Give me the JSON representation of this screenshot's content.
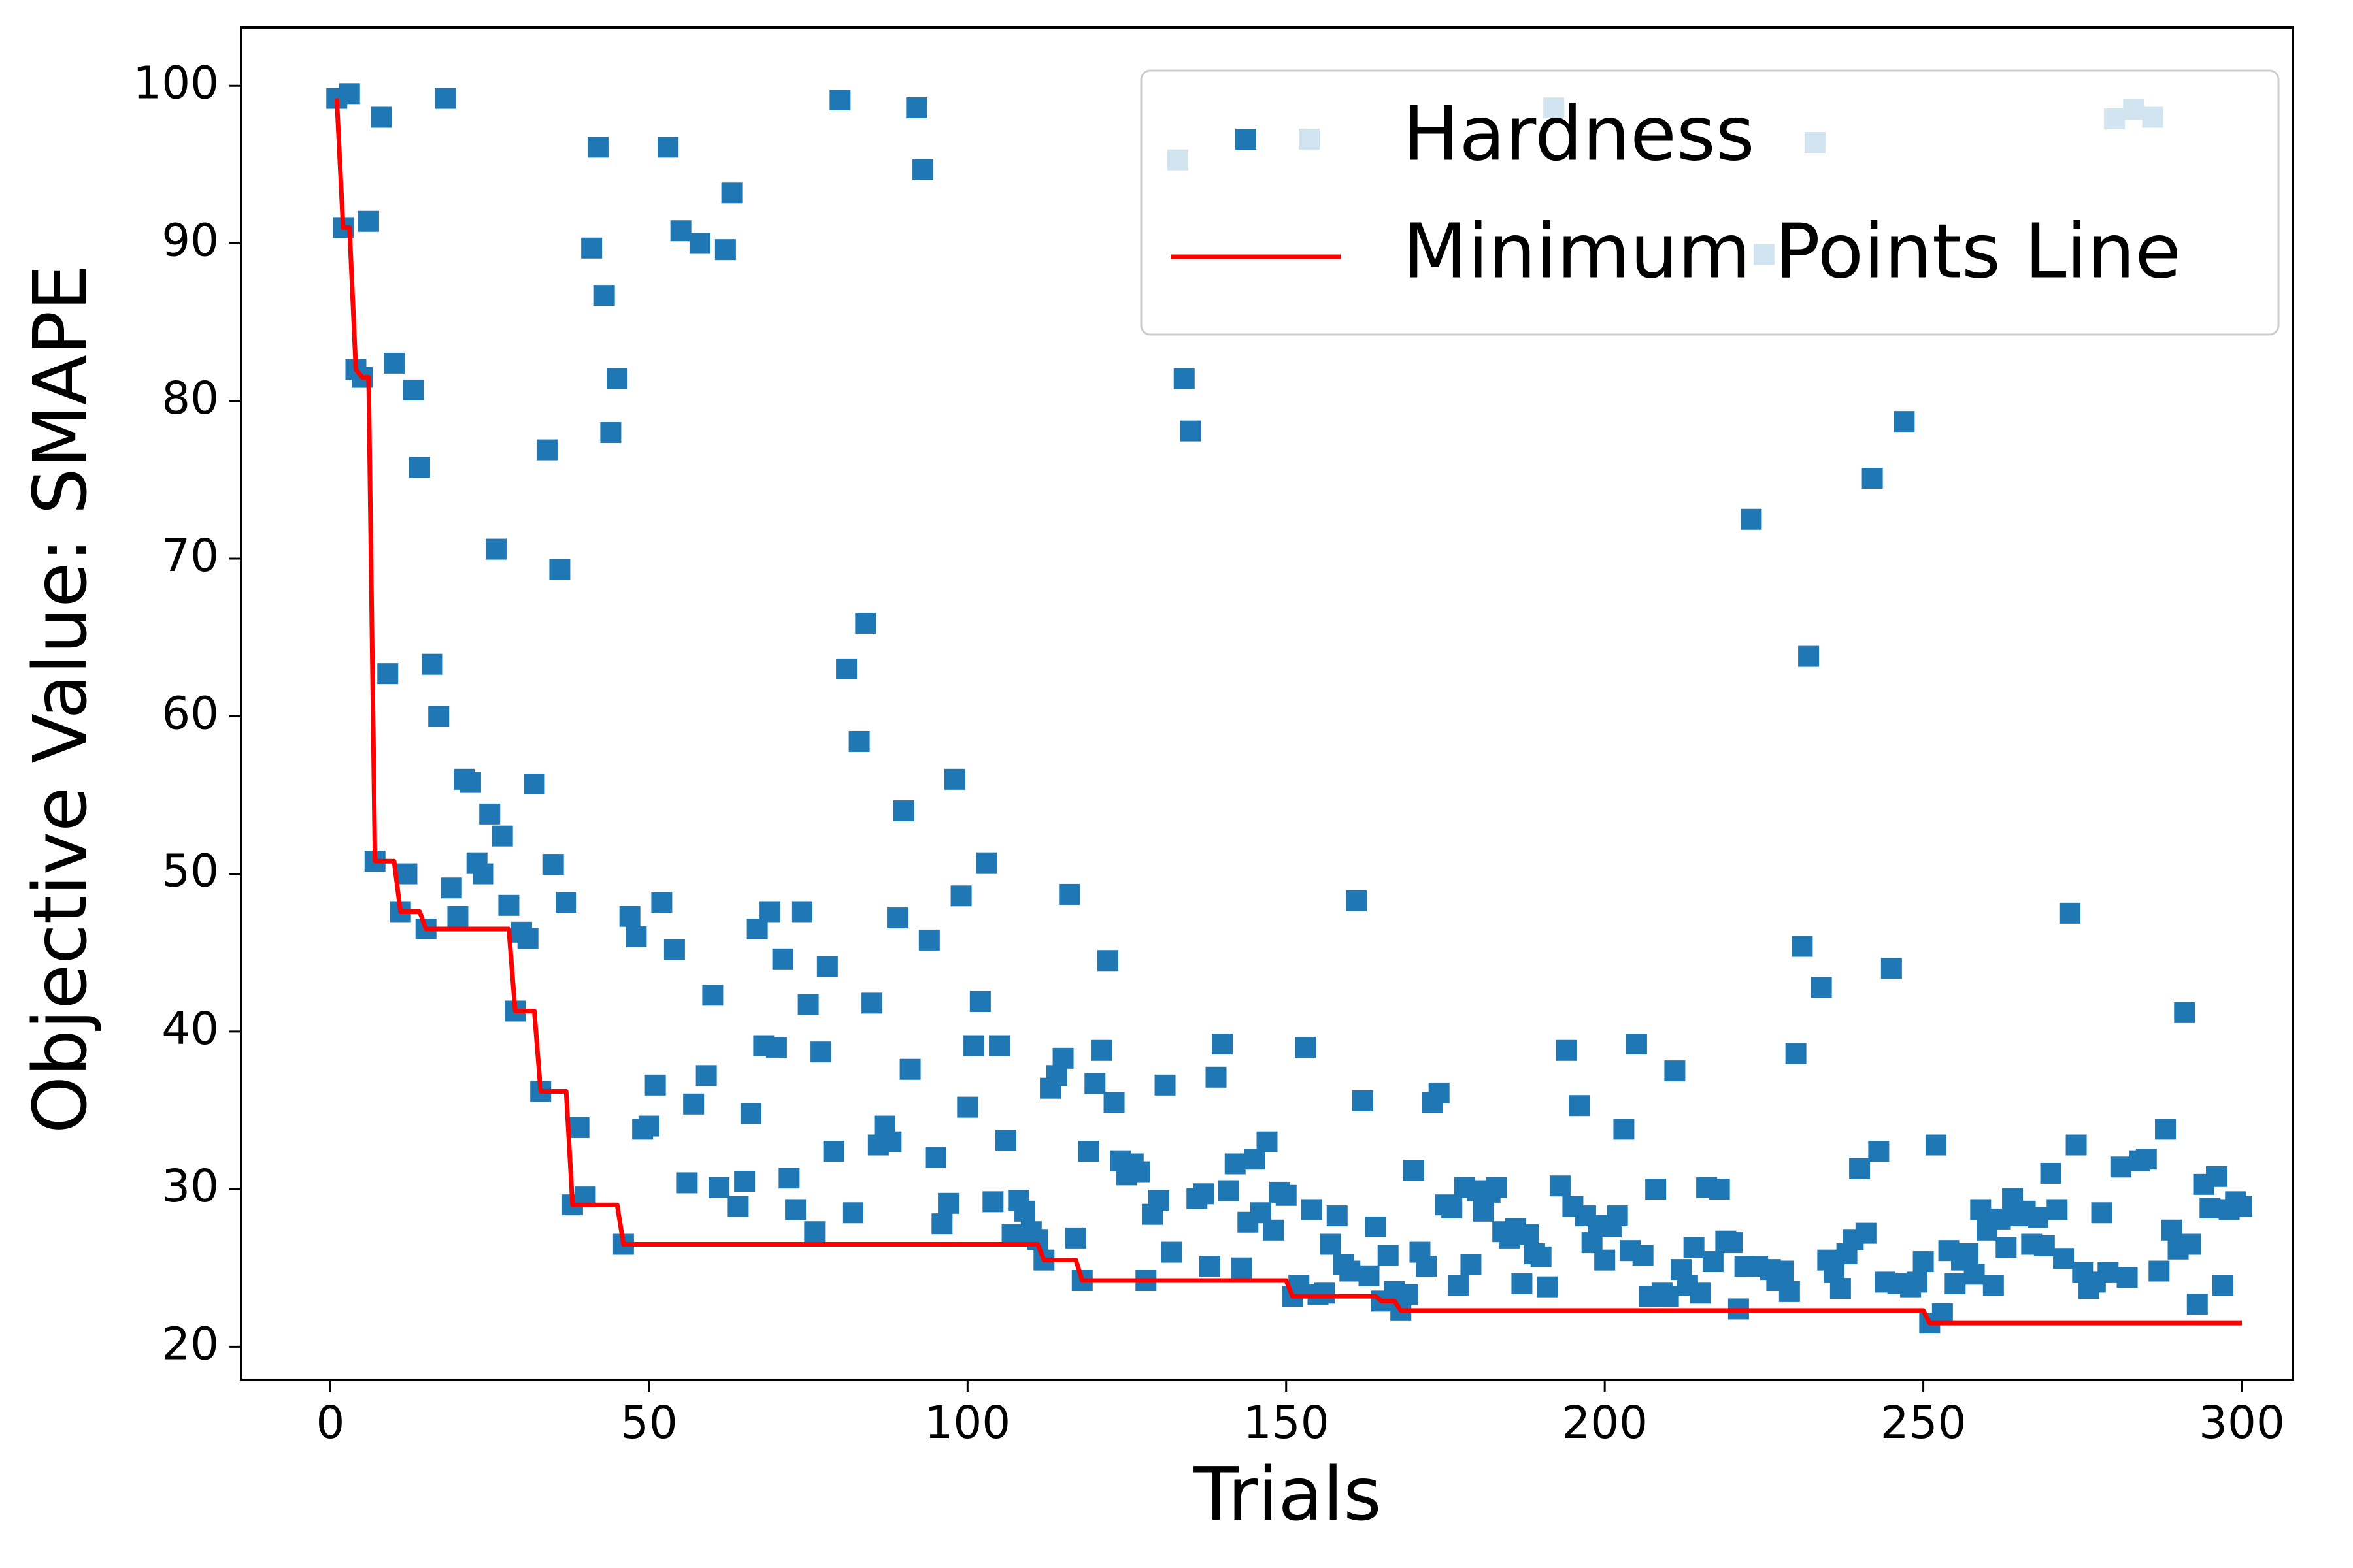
{
  "chart_data": {
    "type": "scatter",
    "xlabel": "Trials",
    "ylabel": "Objective Value: SMAPE",
    "xlim": [
      -14,
      308
    ],
    "ylim": [
      17.9,
      103.7
    ],
    "xticks": [
      0,
      50,
      100,
      150,
      200,
      250,
      300
    ],
    "yticks": [
      20,
      30,
      40,
      50,
      60,
      70,
      80,
      90,
      100
    ],
    "legend": "upper right",
    "series": [
      {
        "name": "Hardness",
        "type": "scatter",
        "color": "#1f77b4",
        "x": [
          1,
          2,
          3,
          4,
          5,
          6,
          7,
          8,
          9,
          10,
          11,
          12,
          13,
          14,
          15,
          16,
          17,
          18,
          19,
          20,
          21,
          22,
          23,
          24,
          25,
          26,
          27,
          28,
          29,
          30,
          31,
          32,
          33,
          34,
          35,
          36,
          37,
          38,
          39,
          40,
          41,
          42,
          43,
          44,
          45,
          46,
          47,
          48,
          49,
          50,
          51,
          52,
          53,
          54,
          55,
          56,
          57,
          58,
          59,
          60,
          61,
          62,
          63,
          64,
          65,
          66,
          67,
          68,
          69,
          70,
          71,
          72,
          73,
          74,
          75,
          76,
          77,
          78,
          79,
          80,
          81,
          82,
          83,
          84,
          85,
          86,
          87,
          88,
          89,
          90,
          91,
          92,
          93,
          94,
          95,
          96,
          97,
          98,
          99,
          100,
          101,
          102,
          103,
          104,
          105,
          106,
          107,
          108,
          109,
          110,
          111,
          112,
          113,
          114,
          115,
          116,
          117,
          118,
          119,
          120,
          121,
          122,
          123,
          124,
          125,
          126,
          127,
          128,
          129,
          130,
          131,
          132,
          133,
          134,
          135,
          136,
          137,
          138,
          139,
          140,
          141,
          142,
          143,
          144,
          145,
          146,
          147,
          148,
          149,
          150,
          151,
          152,
          153,
          154,
          155,
          156,
          157,
          158,
          159,
          160,
          161,
          162,
          163,
          164,
          165,
          166,
          167,
          168,
          169,
          170,
          171,
          172,
          173,
          174,
          175,
          176,
          177,
          178,
          179,
          180,
          181,
          182,
          183,
          184,
          185,
          186,
          187,
          188,
          189,
          190,
          191,
          192,
          193,
          194,
          195,
          196,
          197,
          198,
          199,
          200,
          201,
          202,
          203,
          204,
          205,
          206,
          207,
          208,
          209,
          210,
          211,
          212,
          213,
          214,
          215,
          216,
          217,
          218,
          219,
          220,
          221,
          222,
          223,
          224,
          225,
          226,
          227,
          228,
          229,
          230,
          231,
          232,
          233,
          234,
          235,
          236,
          237,
          238,
          239,
          240,
          241,
          242,
          243,
          244,
          245,
          246,
          247,
          248,
          249,
          250,
          251,
          252,
          253,
          254,
          255,
          256,
          257,
          258,
          259,
          260,
          261,
          262,
          263,
          264,
          265,
          266,
          267,
          268,
          269,
          270,
          271,
          272,
          273,
          274,
          275,
          276,
          277,
          278,
          279,
          280,
          281,
          282,
          283,
          284,
          285,
          286,
          287,
          288,
          289,
          290,
          291,
          292,
          293,
          294,
          295,
          296,
          297,
          298,
          299,
          300
        ],
        "values": [
          99.2,
          91,
          99.5,
          82,
          81.5,
          91.4,
          50.8,
          98,
          62.7,
          82.4,
          47.6,
          50,
          80.7,
          75.8,
          46.5,
          63.3,
          60,
          99.2,
          49.1,
          47.3,
          56,
          55.8,
          50.7,
          50,
          53.8,
          70.6,
          52.4,
          48,
          41.3,
          46.3,
          45.9,
          55.7,
          36.2,
          76.9,
          50.6,
          69.3,
          48.2,
          29,
          33.9,
          29.5,
          89.7,
          96.1,
          86.7,
          78,
          81.4,
          26.5,
          47.3,
          46,
          33.8,
          34,
          36.6,
          48.2,
          96.1,
          45.2,
          90.8,
          30.4,
          35.4,
          90,
          37.2,
          42.3,
          30.1,
          89.6,
          93.2,
          28.9,
          30.5,
          34.8,
          46.5,
          39.1,
          47.6,
          39,
          44.6,
          30.7,
          28.7,
          47.6,
          41.7,
          27.3,
          38.7,
          44.1,
          32.4,
          99.1,
          63,
          28.5,
          58.4,
          65.9,
          41.8,
          32.8,
          34,
          33,
          47.2,
          54,
          37.6,
          98.6,
          94.7,
          45.8,
          32,
          27.8,
          29.1,
          56,
          48.6,
          35.2,
          39.1,
          41.9,
          50.7,
          29.2,
          39.1,
          33.1,
          27.1,
          29.3,
          28.6,
          27.3,
          26.8,
          25.5,
          36.4,
          37.2,
          38.3,
          48.7,
          26.9,
          24.2,
          32.4,
          36.7,
          38.8,
          44.5,
          35.5,
          31.8,
          30.9,
          31.6,
          31.1,
          24.2,
          28.4,
          29.3,
          36.6,
          26,
          95.3,
          81.4,
          78.1,
          29.4,
          29.7,
          25.1,
          37.1,
          39.2,
          29.9,
          31.6,
          25,
          27.9,
          31.9,
          28.5,
          33,
          27.4,
          29.8,
          29.6,
          23.2,
          23.9,
          39,
          28.7,
          23.3,
          23.4,
          26.5,
          28.3,
          25.2,
          24.8,
          48.3,
          35.6,
          24.5,
          27.6,
          22.9,
          25.8,
          23.5,
          22.3,
          23.3,
          31.2,
          26,
          25.1,
          35.5,
          36.1,
          29,
          28.8,
          23.9,
          30.1,
          25.2,
          29.9,
          28.6,
          29.8,
          30.1,
          27.3,
          26.9,
          27.5,
          24,
          27.1,
          25.9,
          25.7,
          23.8,
          98.6,
          30.2,
          38.8,
          28.9,
          35.3,
          28.3,
          26.6,
          27.7,
          25.5,
          27.6,
          28.3,
          33.8,
          26.1,
          39.2,
          25.8,
          23.2,
          30,
          23.4,
          23.2,
          37.5,
          24.9,
          23.9,
          26.3,
          23.4,
          30.1,
          25.4,
          30,
          26.7,
          26.6,
          22.4,
          25.1,
          72.5,
          25.1,
          89.3,
          24.9,
          24.2,
          24.8,
          23.5,
          38.6,
          45.4,
          63.8,
          96.4,
          42.8,
          25.5,
          24.7,
          23.7,
          25.9,
          26.8,
          31.3,
          27.2,
          75.1,
          32.4,
          24.1,
          44,
          24,
          78.7,
          23.8,
          24.1,
          25.4,
          21.5,
          32.8,
          22.1,
          26.1,
          24,
          25.5,
          25.9,
          24.6,
          28.7,
          27.4,
          23.9,
          28.1,
          26.3,
          29.4,
          28.3,
          28.6,
          26.5,
          28.2,
          26.4,
          31,
          28.7,
          25.6,
          47.5,
          32.8,
          24.7,
          23.7,
          24.1,
          28.5,
          24.7,
          97.9,
          31.4,
          24.4,
          98.5,
          31.8,
          31.9,
          98,
          24.8,
          33.8,
          27.4,
          26.2,
          41.2,
          26.5,
          22.7,
          30.3,
          28.8,
          30.8,
          23.9,
          28.7,
          29.2,
          28.9
        ]
      },
      {
        "name": "Minimum Points Line",
        "type": "line",
        "color": "#ff0000",
        "x": [
          1,
          2,
          3,
          4,
          5,
          6,
          7,
          10,
          11,
          14,
          15,
          28,
          29,
          32,
          33,
          37,
          38,
          45,
          46,
          111,
          112,
          117,
          118,
          150,
          151,
          164,
          165,
          167,
          168,
          250,
          251,
          300
        ],
        "values": [
          99.2,
          91,
          91,
          82,
          81.5,
          81.5,
          50.8,
          50.8,
          47.6,
          47.6,
          46.5,
          46.5,
          41.3,
          41.3,
          36.2,
          36.2,
          29,
          29,
          26.5,
          26.5,
          25.5,
          25.5,
          24.2,
          24.2,
          23.2,
          23.2,
          22.9,
          22.9,
          22.3,
          22.3,
          21.5,
          21.5
        ]
      }
    ]
  }
}
